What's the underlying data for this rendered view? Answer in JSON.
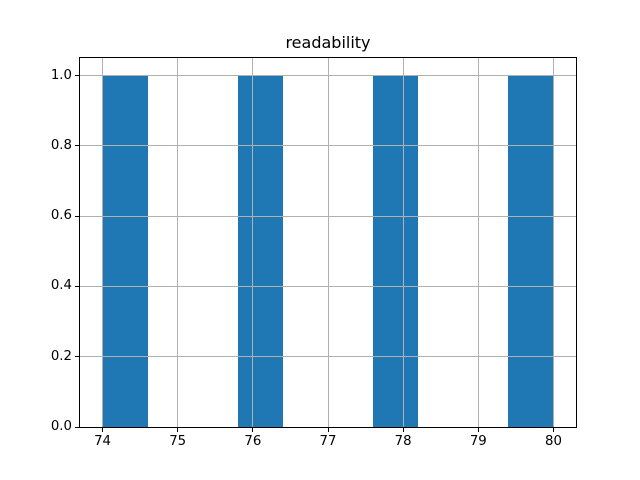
{
  "chart_data": {
    "type": "bar",
    "subtype": "histogram",
    "title": "readability",
    "xlabel": "",
    "ylabel": "",
    "xlim": [
      73.7,
      80.3
    ],
    "ylim": [
      0,
      1.05
    ],
    "xticks": [
      74,
      75,
      76,
      77,
      78,
      79,
      80
    ],
    "xtick_labels": [
      "74",
      "75",
      "76",
      "77",
      "78",
      "79",
      "80"
    ],
    "yticks": [
      0.0,
      0.2,
      0.4,
      0.6,
      0.8,
      1.0
    ],
    "ytick_labels": [
      "0.0",
      "0.2",
      "0.4",
      "0.6",
      "0.8",
      "1.0"
    ],
    "grid": true,
    "grid_over_bars": true,
    "legend": false,
    "bars": [
      {
        "x0": 74.0,
        "x1": 74.6,
        "height": 1.0
      },
      {
        "x0": 75.8,
        "x1": 76.4,
        "height": 1.0
      },
      {
        "x0": 77.6,
        "x1": 78.2,
        "height": 1.0
      },
      {
        "x0": 79.4,
        "x1": 80.0,
        "height": 1.0
      }
    ],
    "colors": {
      "bar": "#1f77b4",
      "grid": "#b0b0b0",
      "spine": "#000000",
      "background": "#ffffff",
      "text": "#000000"
    }
  }
}
